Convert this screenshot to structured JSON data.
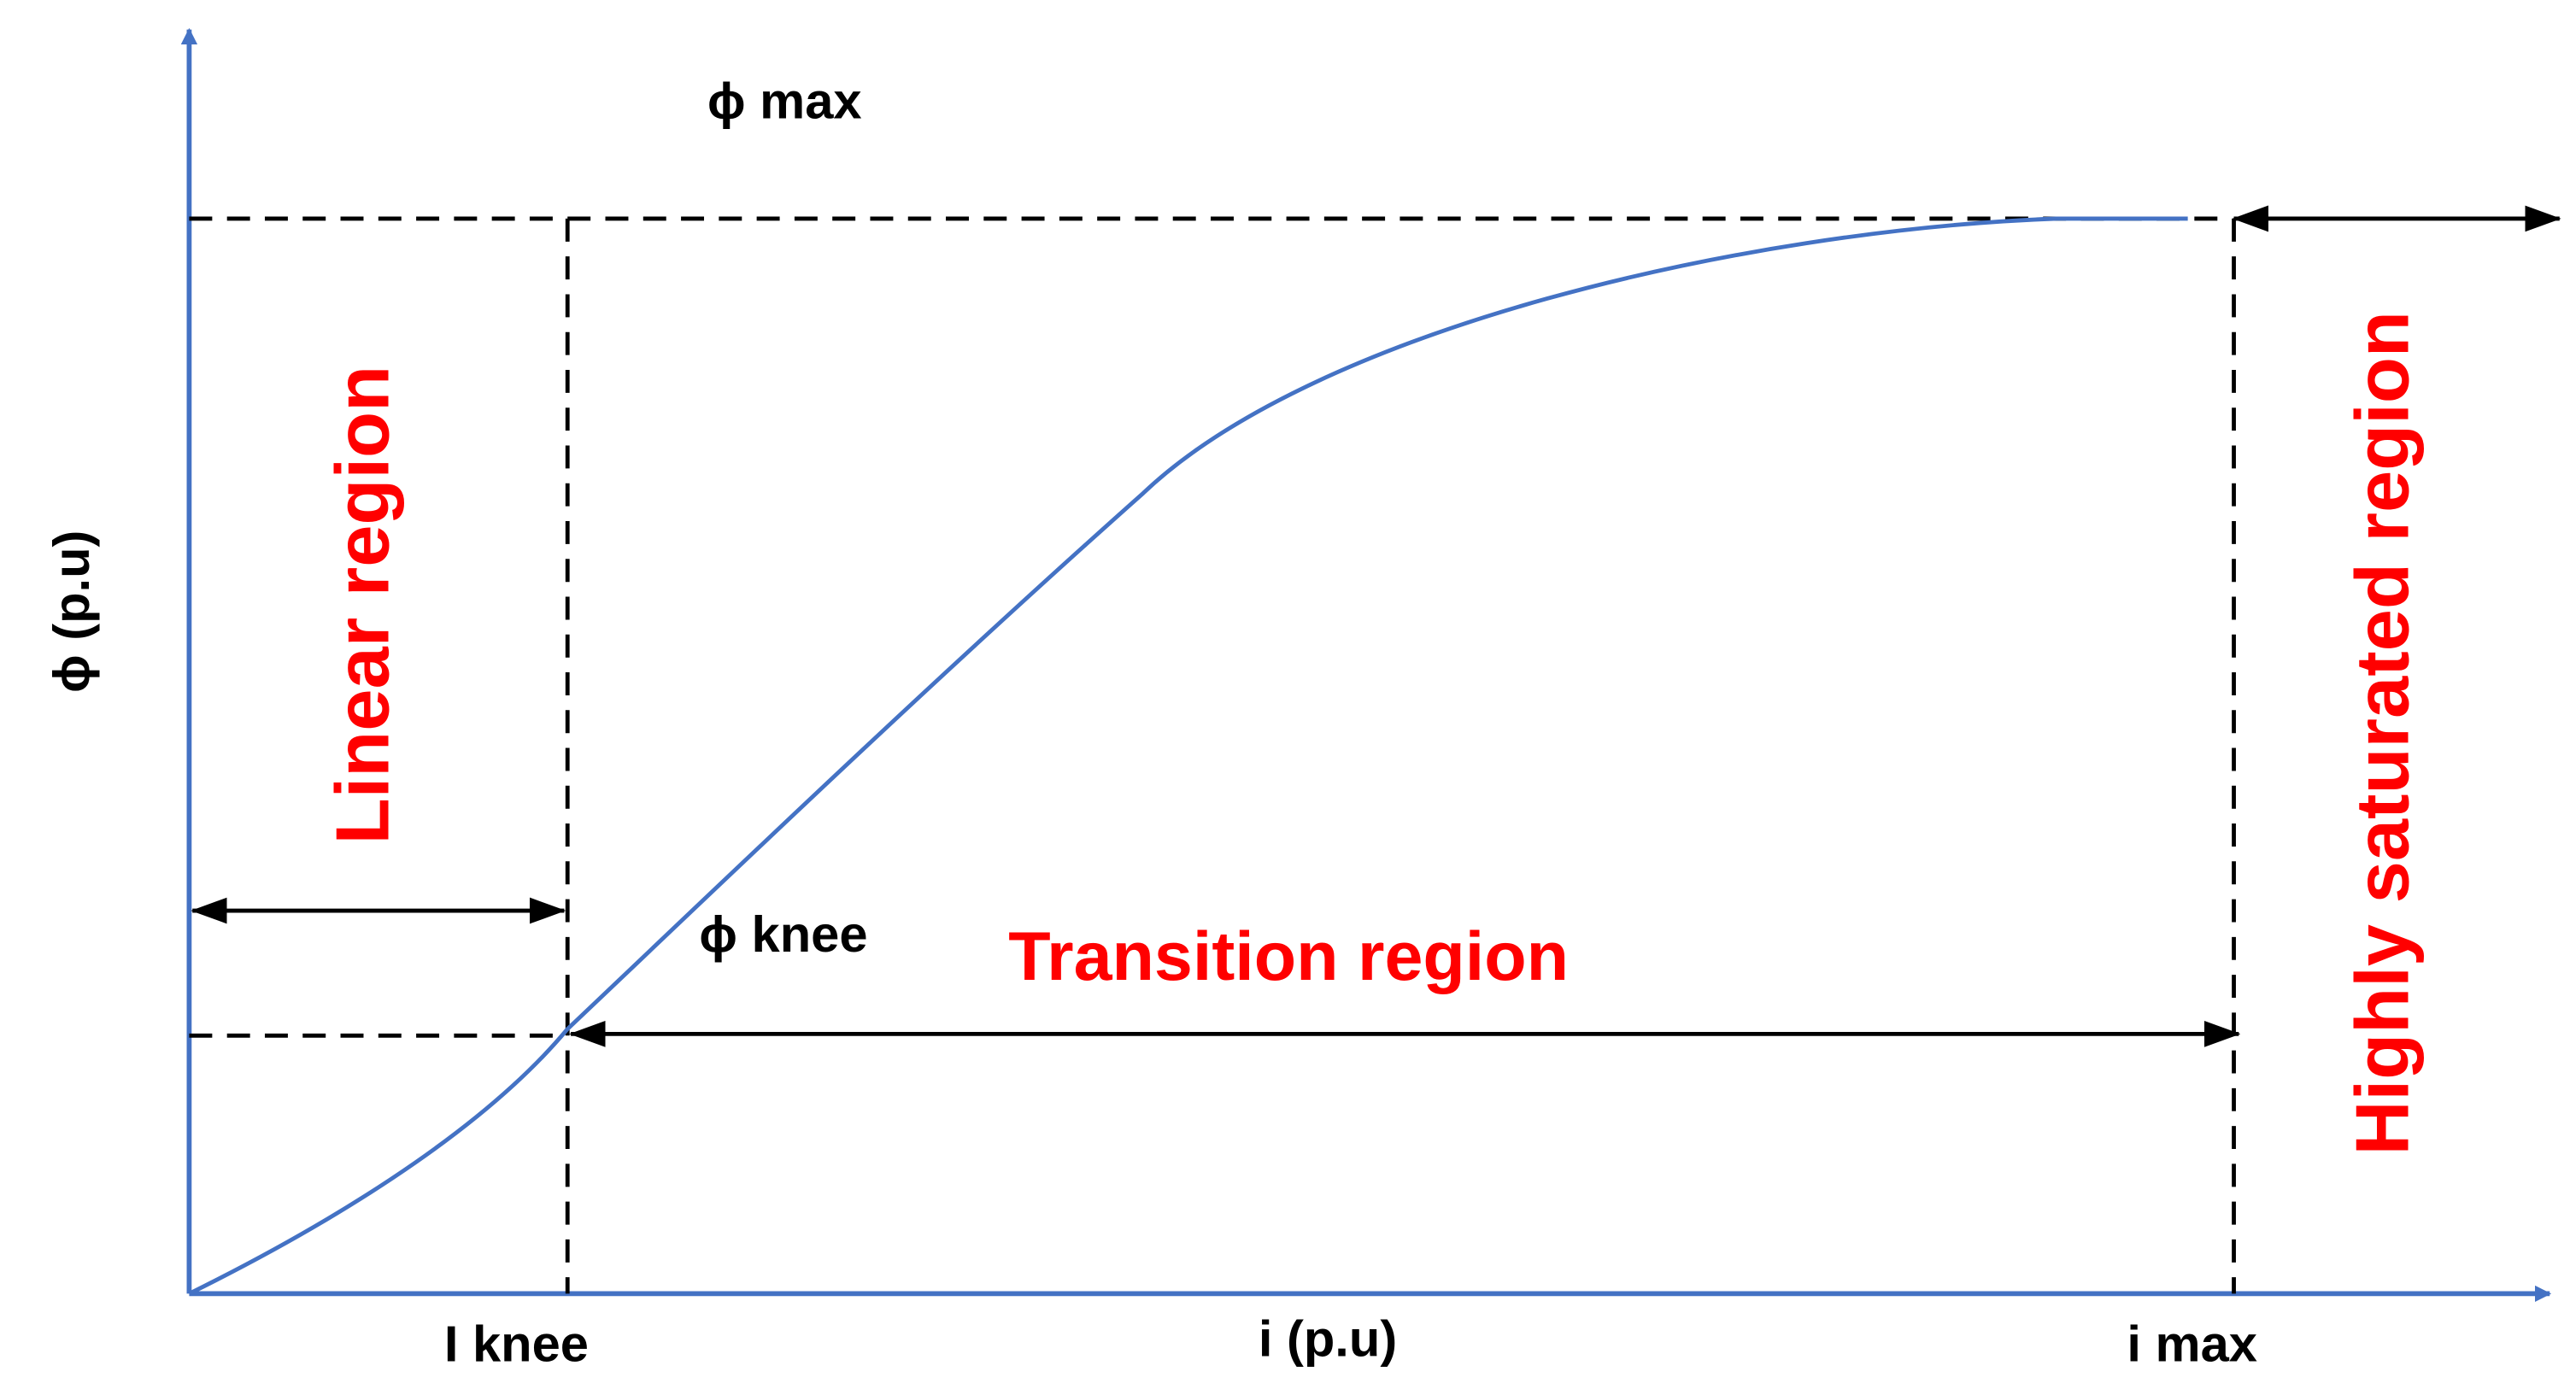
{
  "diagram": {
    "labels": {
      "phi_max": "ϕ max",
      "phi_knee": "ϕ knee",
      "y_axis": "ϕ (p.u)",
      "x_axis": "i (p.u)",
      "i_knee": "I knee",
      "i_max": "i max",
      "linear_region": "Linear region",
      "transition_region": "Transition region",
      "saturated_region": "Highly saturated region"
    },
    "colors": {
      "curve": "#4472c4",
      "axis": "#4472c4",
      "region_text": "#ff0000",
      "label_text": "#000000",
      "guides": "#000000"
    }
  }
}
